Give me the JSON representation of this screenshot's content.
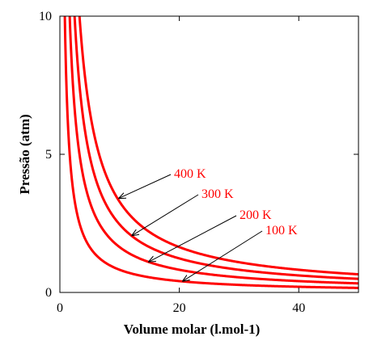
{
  "chart_data": {
    "type": "line",
    "xlabel": "Volume molar (l.mol-1)",
    "ylabel": "Pressão (atm)",
    "xlim": [
      0,
      50
    ],
    "ylim": [
      0,
      10
    ],
    "x_ticks": [
      "0",
      "20",
      "40"
    ],
    "y_ticks": [
      "0",
      "5",
      "10"
    ],
    "grid": false,
    "legend": "none",
    "gas_constant_l_atm_per_mol_k": 0.08206,
    "line_color": "#ff0000",
    "series": [
      {
        "name": "100 K",
        "temperature_k": 100,
        "label_points_to": {
          "x": 20.5,
          "y": 0.4
        }
      },
      {
        "name": "200 K",
        "temperature_k": 200,
        "label_points_to": {
          "x": 14.8,
          "y": 1.1
        }
      },
      {
        "name": "300 K",
        "temperature_k": 300,
        "label_points_to": {
          "x": 12.0,
          "y": 2.05
        }
      },
      {
        "name": "400 K",
        "temperature_k": 400,
        "label_points_to": {
          "x": 9.8,
          "y": 3.4
        }
      }
    ],
    "annotations": [
      "400 K",
      "300 K",
      "200 K",
      "100 K"
    ]
  }
}
